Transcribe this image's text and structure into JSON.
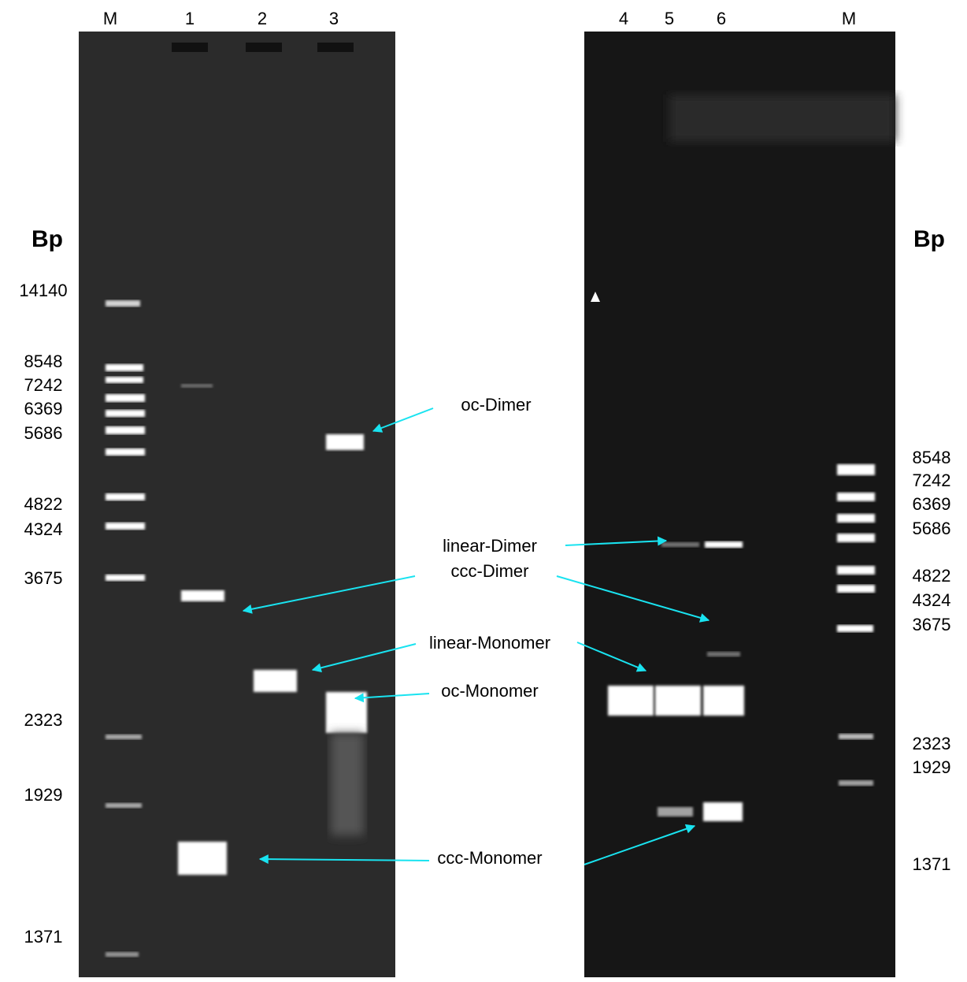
{
  "left_gel": {
    "lanes": [
      "M",
      "1",
      "2",
      "3"
    ],
    "bp_title": "Bp",
    "bp_labels": [
      "14140",
      "8548",
      "7242",
      "6369",
      "5686",
      "4822",
      "4324",
      "3675",
      "2323",
      "1929",
      "1371"
    ]
  },
  "right_gel": {
    "lanes": [
      "4",
      "5",
      "6",
      "M"
    ],
    "bp_title": "Bp",
    "bp_labels": [
      "8548",
      "7242",
      "6369",
      "5686",
      "4822",
      "4324",
      "3675",
      "2323",
      "1929",
      "1371"
    ]
  },
  "annotations": [
    "oc-Dimer",
    "linear-Dimer",
    "ccc-Dimer",
    "linear-Monomer",
    "oc-Monomer",
    "ccc-Monomer"
  ]
}
